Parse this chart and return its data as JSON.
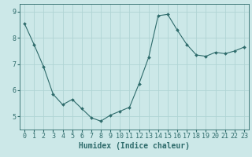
{
  "x": [
    0,
    1,
    2,
    3,
    4,
    5,
    6,
    7,
    8,
    9,
    10,
    11,
    12,
    13,
    14,
    15,
    16,
    17,
    18,
    19,
    20,
    21,
    22,
    23
  ],
  "y": [
    8.55,
    7.75,
    6.9,
    5.85,
    5.45,
    5.65,
    5.3,
    4.95,
    4.82,
    5.05,
    5.2,
    5.35,
    6.25,
    7.25,
    8.85,
    8.9,
    8.3,
    7.75,
    7.35,
    7.3,
    7.45,
    7.4,
    7.5,
    7.65
  ],
  "line_color": "#2e6b6b",
  "marker": "D",
  "marker_size": 2.0,
  "background_color": "#cce8e8",
  "grid_color": "#b0d4d4",
  "xlabel": "Humidex (Indice chaleur)",
  "xlabel_fontsize": 7,
  "tick_fontsize": 6,
  "ylim": [
    4.5,
    9.3
  ],
  "xlim": [
    -0.5,
    23.5
  ],
  "yticks": [
    5,
    6,
    7,
    8,
    9
  ],
  "xtick_labels": [
    "0",
    "1",
    "2",
    "3",
    "4",
    "5",
    "6",
    "7",
    "8",
    "9",
    "10",
    "11",
    "12",
    "13",
    "14",
    "15",
    "16",
    "17",
    "18",
    "19",
    "20",
    "21",
    "22",
    "23"
  ]
}
